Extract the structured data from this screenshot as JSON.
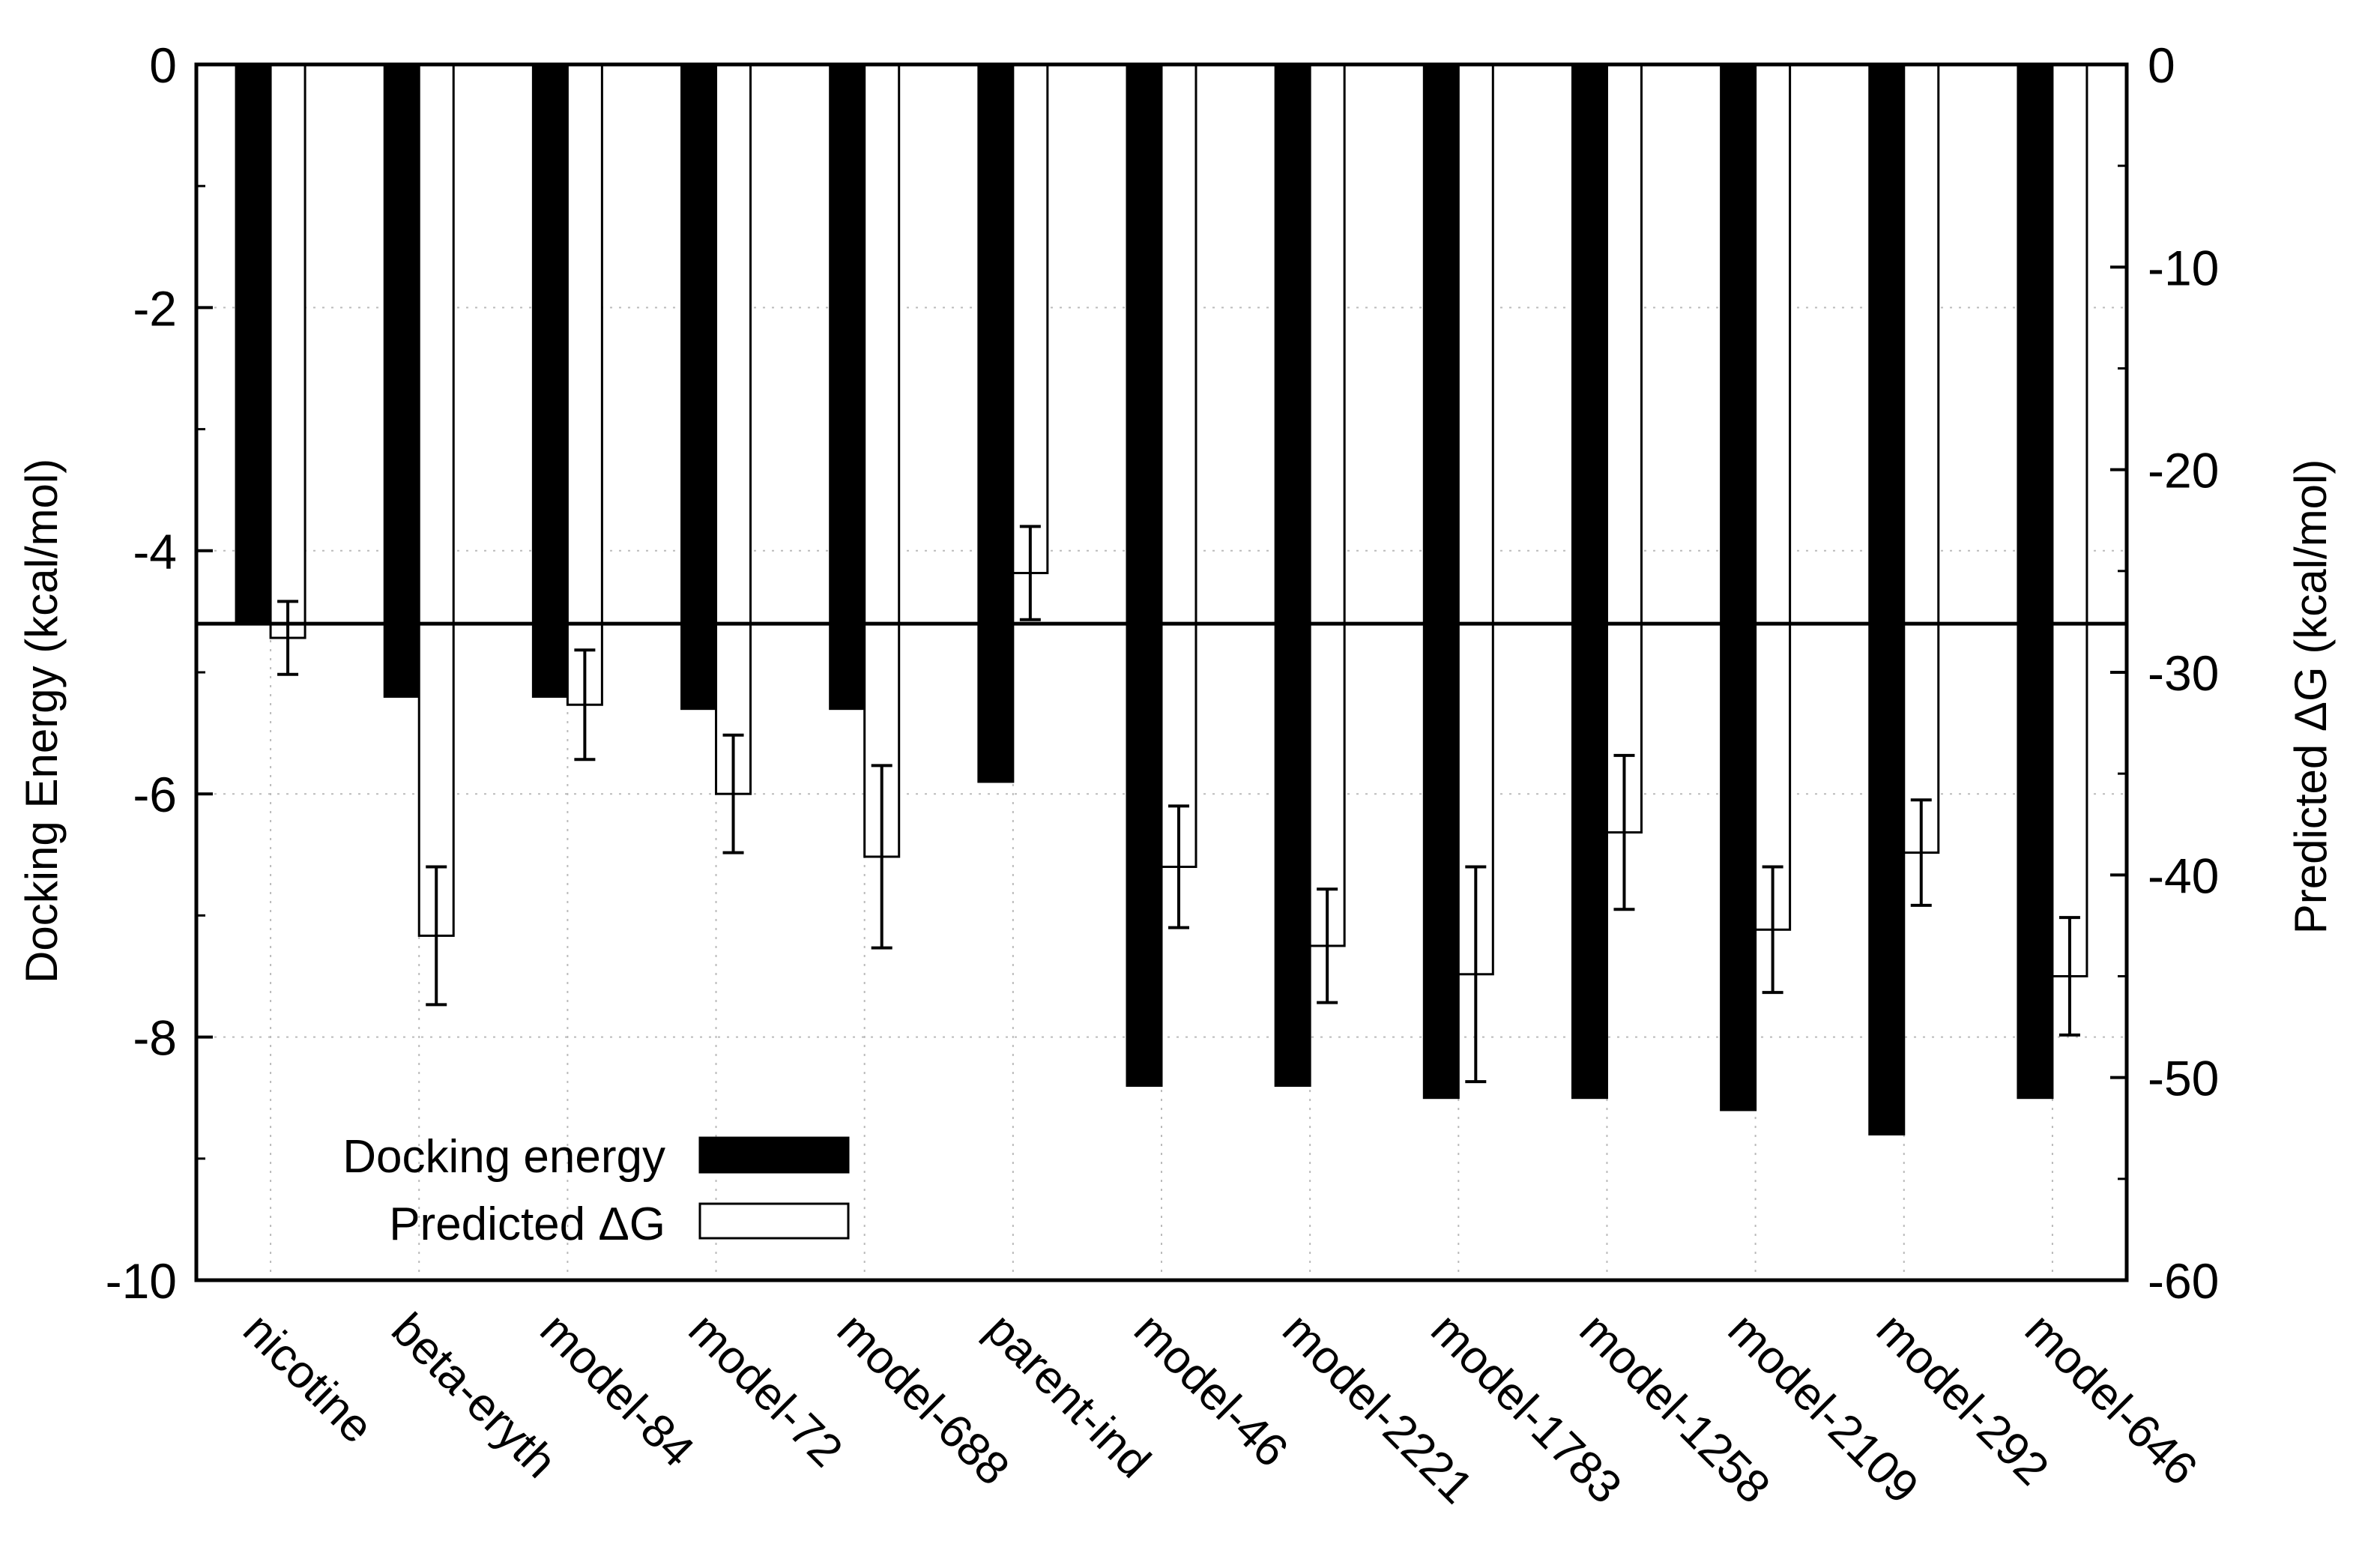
{
  "chart_data": {
    "type": "bar",
    "title": "",
    "categories": [
      "nicotine",
      "beta-eryth",
      "model-84",
      "model-72",
      "model-688",
      "parent-ind",
      "model-46",
      "model-2221",
      "model-1783",
      "model-1258",
      "model-2109",
      "model-292",
      "model-646"
    ],
    "xlabel": "",
    "ylabel": "Docking Energy (kcal/mol)",
    "y2label": "Predicted ΔG (kcal/mol)",
    "ylim": [
      -10,
      0
    ],
    "y2lim": [
      -60,
      0
    ],
    "yticks": [
      0,
      -2,
      -4,
      -6,
      -8,
      -10
    ],
    "y2ticks": [
      0,
      -10,
      -20,
      -30,
      -40,
      -50,
      -60
    ],
    "series": [
      {
        "name": "Docking energy",
        "axis": "left",
        "color": "#000000",
        "values": [
          -4.6,
          -5.2,
          -5.2,
          -5.3,
          -5.3,
          -5.9,
          -8.4,
          -8.4,
          -8.5,
          -8.5,
          -8.6,
          -8.8,
          -8.5
        ]
      },
      {
        "name": "Predicted ΔG",
        "axis": "right",
        "color": "#ffffff",
        "values": [
          -28.3,
          -43.0,
          -31.6,
          -36.0,
          -39.1,
          -25.1,
          -39.6,
          -43.5,
          -44.9,
          -37.9,
          -42.7,
          -38.9,
          -45.0
        ],
        "error": [
          1.8,
          3.4,
          2.7,
          2.9,
          4.5,
          2.3,
          3.0,
          2.8,
          5.3,
          3.8,
          3.1,
          2.6,
          2.9
        ]
      }
    ],
    "reference_line": {
      "axis": "left",
      "value": -4.6
    },
    "grid": true,
    "legend": "bottom-left"
  }
}
